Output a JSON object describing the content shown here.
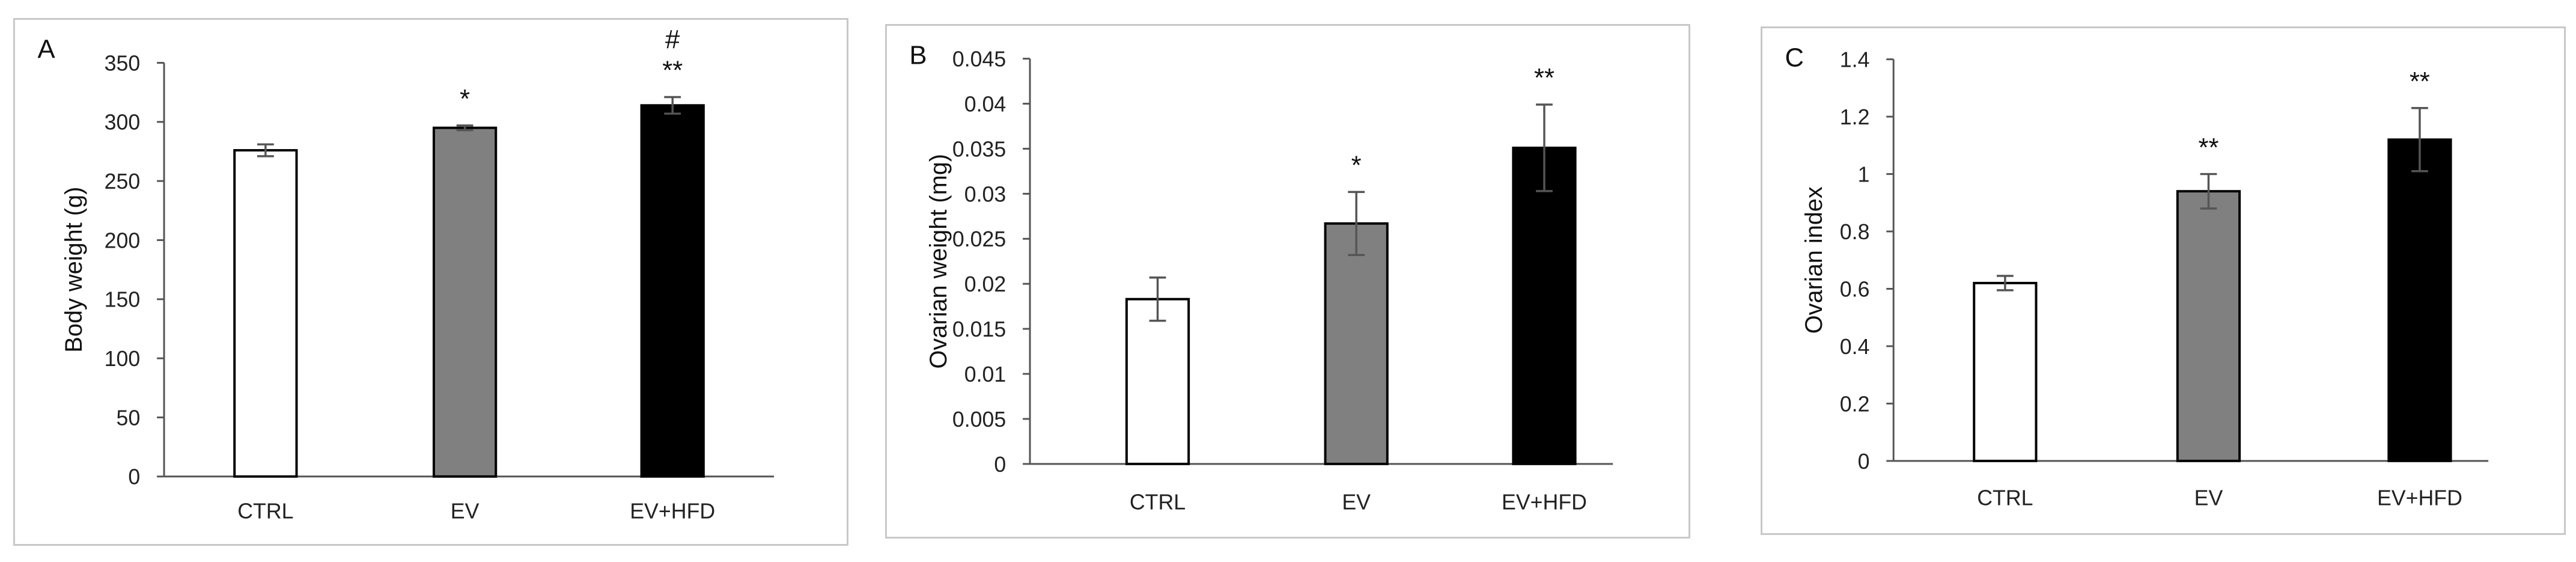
{
  "chart_data": [
    {
      "type": "bar",
      "panel_label": "A",
      "categories": [
        "CTRL",
        "EV",
        "EV+HFD"
      ],
      "values": [
        276,
        295,
        314
      ],
      "errors": [
        5,
        2,
        7
      ],
      "colors": [
        "#ffffff",
        "#808080",
        "#000000"
      ],
      "annotations": [
        [],
        [
          "*"
        ],
        [
          "**",
          "#"
        ]
      ],
      "ylabel": "Body weight (g)",
      "ylim": [
        0,
        350
      ],
      "yticks": [
        0,
        50,
        100,
        150,
        200,
        250,
        300,
        350
      ],
      "ytick_labels": [
        "0",
        "50",
        "100",
        "150",
        "200",
        "250",
        "300",
        "350"
      ]
    },
    {
      "type": "bar",
      "panel_label": "B",
      "categories": [
        "CTRL",
        "EV",
        "EV+HFD"
      ],
      "values": [
        0.0183,
        0.0267,
        0.0351
      ],
      "errors": [
        0.0024,
        0.0035,
        0.0048
      ],
      "colors": [
        "#ffffff",
        "#808080",
        "#000000"
      ],
      "annotations": [
        [],
        [
          "*"
        ],
        [
          "**"
        ]
      ],
      "ylabel": "Ovarian weight (mg)",
      "ylim": [
        0,
        0.045
      ],
      "yticks": [
        0,
        0.005,
        0.01,
        0.015,
        0.02,
        0.025,
        0.03,
        0.035,
        0.04,
        0.045
      ],
      "ytick_labels": [
        "0",
        "0.005",
        "0.01",
        "0.015",
        "0.02",
        "0.025",
        "0.03",
        "0.035",
        "0.04",
        "0.045"
      ]
    },
    {
      "type": "bar",
      "panel_label": "C",
      "categories": [
        "CTRL",
        "EV",
        "EV+HFD"
      ],
      "values": [
        0.62,
        0.94,
        1.12
      ],
      "errors": [
        0.025,
        0.06,
        0.11
      ],
      "colors": [
        "#ffffff",
        "#808080",
        "#000000"
      ],
      "annotations": [
        [],
        [
          "**"
        ],
        [
          "**"
        ]
      ],
      "ylabel": "Ovarian index",
      "ylim": [
        0,
        1.4
      ],
      "yticks": [
        0,
        0.2,
        0.4,
        0.6,
        0.8,
        1.0,
        1.2,
        1.4
      ],
      "ytick_labels": [
        "0",
        "0.2",
        "0.4",
        "0.6",
        "0.8",
        "1",
        "1.2",
        "1.4"
      ]
    }
  ]
}
